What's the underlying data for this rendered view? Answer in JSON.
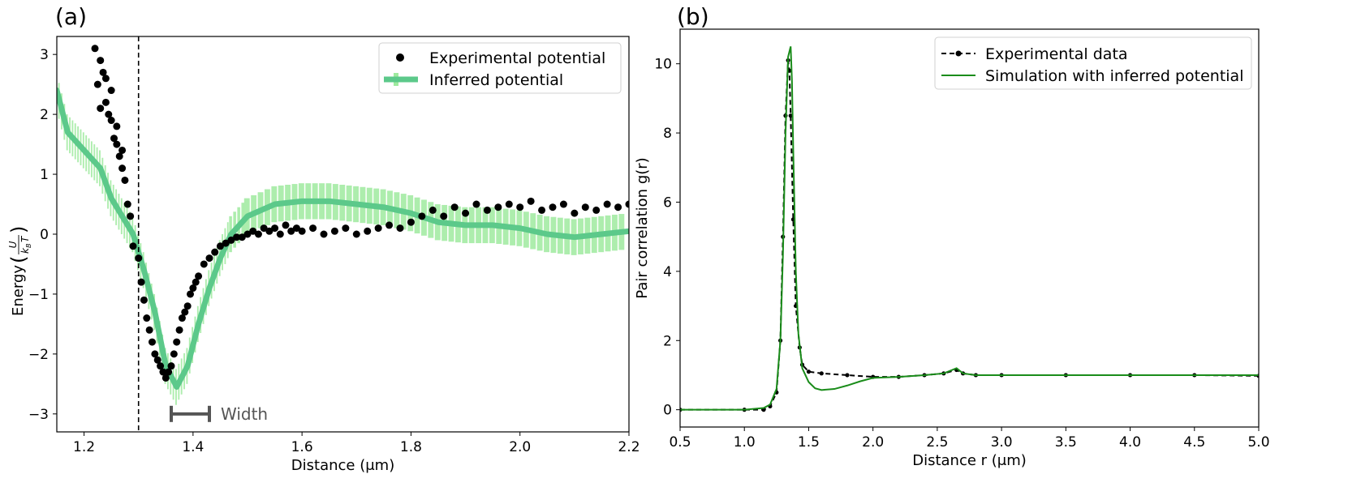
{
  "colors": {
    "experimental": "#000000",
    "inferred_line": "#5cc98a",
    "inferred_band": "#9fea9f",
    "simulation": "#1a8c1a",
    "width_bar": "#555555"
  },
  "chart_data": [
    {
      "type": "scatter",
      "panel_label": "(a)",
      "xlabel": "Distance (μm)",
      "ylabel": "Energy (U / k_B T)",
      "ylabel_main": "Energy",
      "ylabel_frac_num": "U",
      "ylabel_frac_den": "k",
      "ylabel_frac_den_sub": "B",
      "ylabel_frac_den_tail": "T",
      "xlim": [
        1.15,
        2.2
      ],
      "ylim": [
        -3.3,
        3.3
      ],
      "x_ticks": [
        "1.2",
        "1.4",
        "1.6",
        "1.8",
        "2.0",
        "2.2"
      ],
      "y_ticks": [
        "−3",
        "−2",
        "−1",
        "0",
        "1",
        "2",
        "3"
      ],
      "legend_position": "top-right",
      "vline_x": 1.3,
      "width_annotation": {
        "label": "Width",
        "x_start": 1.36,
        "x_end": 1.43,
        "y": -3.0
      },
      "series": [
        {
          "name": "Experimental potential",
          "kind": "points",
          "x": [
            1.22,
            1.225,
            1.23,
            1.23,
            1.235,
            1.24,
            1.24,
            1.245,
            1.25,
            1.25,
            1.255,
            1.26,
            1.26,
            1.265,
            1.27,
            1.27,
            1.275,
            1.28,
            1.285,
            1.29,
            1.3,
            1.305,
            1.31,
            1.315,
            1.32,
            1.325,
            1.33,
            1.335,
            1.34,
            1.345,
            1.35,
            1.355,
            1.36,
            1.365,
            1.37,
            1.375,
            1.38,
            1.385,
            1.39,
            1.395,
            1.4,
            1.405,
            1.41,
            1.42,
            1.43,
            1.44,
            1.45,
            1.46,
            1.47,
            1.48,
            1.49,
            1.5,
            1.51,
            1.52,
            1.53,
            1.54,
            1.55,
            1.56,
            1.57,
            1.58,
            1.59,
            1.6,
            1.62,
            1.64,
            1.66,
            1.68,
            1.7,
            1.72,
            1.74,
            1.76,
            1.78,
            1.8,
            1.82,
            1.84,
            1.86,
            1.88,
            1.9,
            1.92,
            1.94,
            1.96,
            1.98,
            2.0,
            2.02,
            2.04,
            2.06,
            2.08,
            2.1,
            2.12,
            2.14,
            2.16,
            2.18,
            2.2
          ],
          "y": [
            3.1,
            2.5,
            2.9,
            2.1,
            2.7,
            2.2,
            2.6,
            2.0,
            1.9,
            2.4,
            1.6,
            1.5,
            1.8,
            1.3,
            1.1,
            1.4,
            0.9,
            0.5,
            0.3,
            -0.2,
            -0.4,
            -0.8,
            -1.1,
            -1.4,
            -1.6,
            -1.8,
            -2.0,
            -2.1,
            -2.2,
            -2.3,
            -2.4,
            -2.3,
            -2.2,
            -2.0,
            -1.8,
            -1.6,
            -1.4,
            -1.3,
            -1.2,
            -1.0,
            -0.9,
            -0.8,
            -0.7,
            -0.5,
            -0.4,
            -0.3,
            -0.2,
            -0.15,
            -0.1,
            -0.05,
            -0.05,
            0.0,
            0.05,
            0.0,
            0.1,
            0.05,
            0.1,
            0.0,
            0.15,
            0.05,
            0.1,
            0.05,
            0.1,
            0.0,
            0.05,
            0.1,
            0.0,
            0.05,
            0.1,
            0.15,
            0.1,
            0.2,
            0.3,
            0.4,
            0.3,
            0.45,
            0.35,
            0.5,
            0.4,
            0.45,
            0.5,
            0.45,
            0.55,
            0.4,
            0.45,
            0.5,
            0.35,
            0.45,
            0.4,
            0.5,
            0.45,
            0.5
          ]
        },
        {
          "name": "Inferred potential",
          "kind": "line_with_band",
          "x": [
            1.15,
            1.17,
            1.19,
            1.21,
            1.23,
            1.25,
            1.27,
            1.29,
            1.31,
            1.33,
            1.35,
            1.37,
            1.39,
            1.41,
            1.43,
            1.45,
            1.47,
            1.5,
            1.55,
            1.6,
            1.65,
            1.7,
            1.75,
            1.8,
            1.85,
            1.9,
            1.95,
            2.0,
            2.05,
            2.1,
            2.15,
            2.2
          ],
          "y": [
            2.4,
            1.7,
            1.5,
            1.3,
            1.1,
            0.6,
            0.3,
            0.0,
            -0.6,
            -1.3,
            -2.2,
            -2.55,
            -2.2,
            -1.5,
            -0.9,
            -0.4,
            0.0,
            0.3,
            0.5,
            0.55,
            0.55,
            0.5,
            0.45,
            0.35,
            0.2,
            0.15,
            0.15,
            0.1,
            0.0,
            -0.05,
            0.0,
            0.05
          ],
          "band_halfwidth": 0.3
        }
      ]
    },
    {
      "type": "line",
      "panel_label": "(b)",
      "xlabel": "Distance r (μm)",
      "ylabel": "Pair correlation g(r)",
      "xlim": [
        0.5,
        5.0
      ],
      "ylim": [
        -0.5,
        11.0
      ],
      "x_ticks": [
        "0.5",
        "1.0",
        "1.5",
        "2.0",
        "2.5",
        "3.0",
        "3.5",
        "4.0",
        "4.5",
        "5.0"
      ],
      "y_ticks": [
        "0",
        "2",
        "4",
        "6",
        "8",
        "10"
      ],
      "legend_position": "top-right",
      "series": [
        {
          "name": "Experimental data",
          "kind": "dashed_markers",
          "x": [
            0.5,
            1.0,
            1.15,
            1.2,
            1.25,
            1.28,
            1.3,
            1.32,
            1.34,
            1.35,
            1.36,
            1.38,
            1.4,
            1.43,
            1.45,
            1.5,
            1.6,
            1.8,
            2.0,
            2.2,
            2.4,
            2.55,
            2.65,
            2.7,
            2.8,
            3.0,
            3.5,
            4.0,
            4.5,
            5.0
          ],
          "y": [
            0.0,
            0.0,
            0.0,
            0.1,
            0.5,
            2.0,
            5.0,
            8.5,
            10.1,
            9.8,
            8.5,
            5.5,
            3.0,
            1.8,
            1.3,
            1.1,
            1.05,
            1.0,
            0.95,
            0.95,
            1.0,
            1.05,
            1.15,
            1.05,
            1.0,
            1.0,
            1.0,
            1.0,
            1.0,
            0.98
          ]
        },
        {
          "name": "Simulation with inferred potential",
          "kind": "line",
          "x": [
            0.5,
            1.0,
            1.15,
            1.2,
            1.25,
            1.28,
            1.3,
            1.32,
            1.34,
            1.36,
            1.37,
            1.38,
            1.4,
            1.42,
            1.45,
            1.5,
            1.55,
            1.6,
            1.7,
            1.8,
            1.9,
            2.0,
            2.2,
            2.4,
            2.55,
            2.65,
            2.7,
            2.8,
            3.0,
            3.5,
            4.0,
            4.5,
            5.0
          ],
          "y": [
            0.0,
            0.0,
            0.05,
            0.15,
            0.6,
            2.0,
            4.5,
            8.0,
            10.2,
            10.5,
            9.5,
            7.5,
            4.0,
            2.2,
            1.2,
            0.8,
            0.62,
            0.57,
            0.6,
            0.7,
            0.82,
            0.92,
            0.95,
            1.0,
            1.05,
            1.2,
            1.05,
            1.0,
            1.0,
            1.0,
            1.0,
            1.0,
            1.0
          ]
        }
      ]
    }
  ]
}
